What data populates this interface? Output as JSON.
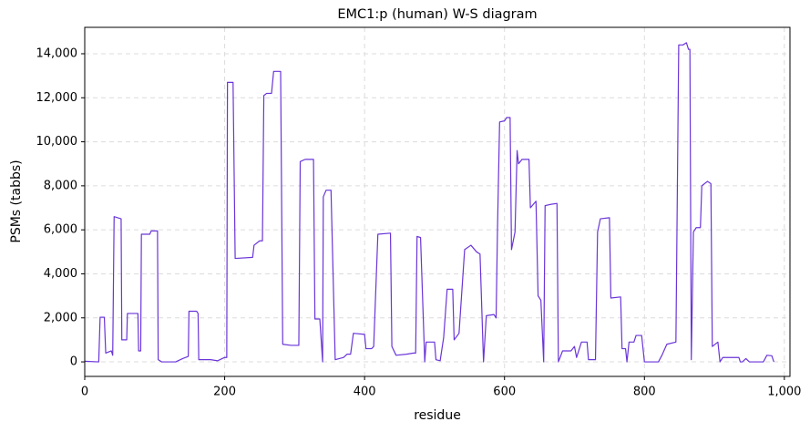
{
  "chart_data": {
    "type": "line",
    "title": "EMC1:p (human) W-S diagram",
    "x_label": "residue",
    "y_label": "PSMs (tabbs)",
    "color": "#6a35d8",
    "grid": true,
    "x": [
      0,
      20,
      22,
      28,
      30,
      38,
      40,
      42,
      52,
      53,
      60,
      61,
      76,
      77,
      80,
      81,
      93,
      95,
      104,
      105,
      110,
      130,
      140,
      148,
      149,
      160,
      162,
      163,
      180,
      190,
      200,
      203,
      204,
      212,
      215,
      240,
      242,
      250,
      254,
      256,
      260,
      267,
      270,
      280,
      283,
      295,
      305,
      306,
      308,
      315,
      327,
      329,
      336,
      340,
      341,
      345,
      352,
      358,
      370,
      375,
      380,
      384,
      400,
      402,
      410,
      413,
      419,
      437,
      439,
      445,
      460,
      470,
      473,
      475,
      480,
      486,
      488,
      500,
      502,
      508,
      513,
      518,
      526,
      528,
      535,
      543,
      552,
      560,
      565,
      570,
      574,
      585,
      588,
      590,
      593,
      600,
      603,
      608,
      610,
      615,
      618,
      620,
      625,
      635,
      637,
      645,
      648,
      652,
      656,
      658,
      665,
      675,
      677,
      683,
      695,
      700,
      703,
      710,
      718,
      720,
      730,
      733,
      737,
      750,
      752,
      766,
      768,
      773,
      775,
      778,
      785,
      788,
      796,
      800,
      820,
      825,
      832,
      845,
      849,
      855,
      860,
      863,
      865,
      867,
      870,
      874,
      880,
      882,
      890,
      895,
      897,
      905,
      908,
      912,
      935,
      937,
      940,
      945,
      950,
      970,
      975,
      982,
      985
    ],
    "values": [
      30,
      0,
      2030,
      2030,
      400,
      500,
      300,
      6600,
      6500,
      1000,
      1000,
      2200,
      2200,
      500,
      500,
      5800,
      5800,
      5950,
      5950,
      100,
      0,
      0,
      150,
      250,
      2300,
      2300,
      2200,
      100,
      100,
      50,
      200,
      200,
      12700,
      12700,
      4700,
      4750,
      5300,
      5500,
      5500,
      12100,
      12200,
      12200,
      13200,
      13200,
      800,
      750,
      750,
      750,
      9100,
      9200,
      9200,
      1950,
      1950,
      0,
      7500,
      7800,
      7800,
      100,
      200,
      350,
      350,
      1300,
      1250,
      600,
      600,
      700,
      5800,
      5850,
      700,
      300,
      350,
      400,
      400,
      5700,
      5650,
      0,
      900,
      900,
      100,
      50,
      1100,
      3300,
      3300,
      1000,
      1300,
      5100,
      5300,
      5000,
      4900,
      0,
      2100,
      2150,
      2000,
      6100,
      10900,
      10950,
      11100,
      11100,
      5100,
      5900,
      9600,
      9000,
      9200,
      9200,
      7000,
      7300,
      3000,
      2800,
      0,
      7100,
      7150,
      7200,
      0,
      500,
      500,
      700,
      200,
      900,
      900,
      100,
      100,
      5900,
      6500,
      6550,
      2900,
      2950,
      600,
      600,
      0,
      900,
      900,
      1200,
      1200,
      0,
      0,
      300,
      800,
      900,
      14400,
      14400,
      14500,
      14200,
      14200,
      100,
      5900,
      6100,
      6100,
      8000,
      8200,
      8100,
      700,
      900,
      0,
      200,
      200,
      0,
      0,
      150,
      0,
      0,
      300,
      280,
      0
    ],
    "xlim": [
      0,
      1008
    ],
    "ylim": [
      -660,
      15200
    ],
    "xticks": [
      0,
      200,
      400,
      600,
      800,
      {
        "value": 1000,
        "label": "1,000"
      }
    ],
    "yticks": [
      0,
      {
        "value": 2000,
        "label": "2,000"
      },
      {
        "value": 4000,
        "label": "4,000"
      },
      {
        "value": 6000,
        "label": "6,000"
      },
      {
        "value": 8000,
        "label": "8,000"
      },
      {
        "value": 10000,
        "label": "10,000"
      },
      {
        "value": 12000,
        "label": "12,000"
      },
      {
        "value": 14000,
        "label": "14,000"
      }
    ]
  }
}
